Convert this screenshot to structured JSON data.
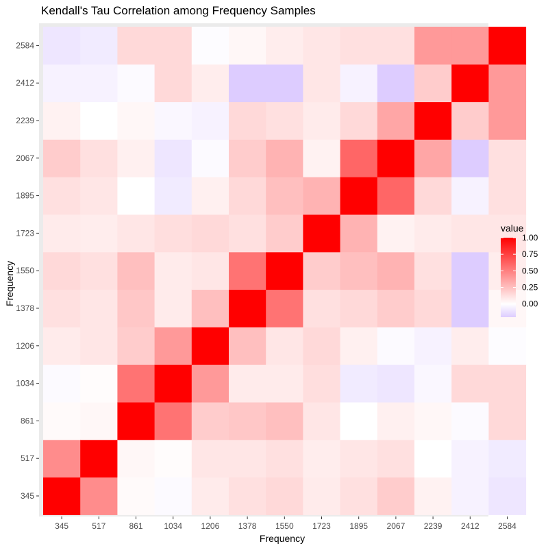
{
  "chart_data": {
    "type": "heatmap",
    "title": "Kendall's Tau Correlation among Frequency Samples",
    "xlabel": "Frequency",
    "ylabel": "Frequency",
    "categories": [
      "345",
      "517",
      "861",
      "1034",
      "1206",
      "1378",
      "1550",
      "1723",
      "1895",
      "2067",
      "2239",
      "2412",
      "2584"
    ],
    "legend": {
      "title": "value",
      "ticks": [
        "1.00",
        "0.75",
        "0.50",
        "0.25",
        "0.00"
      ],
      "tick_values": [
        1.0,
        0.75,
        0.5,
        0.25,
        0.0
      ],
      "range": [
        -0.2,
        1.0
      ],
      "position": "right"
    },
    "colors": {
      "low": "#ddccff",
      "mid": "#ffffff",
      "high": "#ff0000",
      "panel_bg": "#ebebeb",
      "grid": "#ffffff"
    },
    "matrix": [
      [
        1.0,
        0.45,
        0.02,
        -0.02,
        0.08,
        0.12,
        0.15,
        0.08,
        0.12,
        0.2,
        0.05,
        -0.05,
        -0.1
      ],
      [
        0.45,
        1.0,
        0.03,
        0.01,
        0.1,
        0.1,
        0.12,
        0.07,
        0.1,
        0.12,
        0.0,
        -0.05,
        -0.08
      ],
      [
        0.02,
        0.03,
        1.0,
        0.55,
        0.2,
        0.22,
        0.25,
        0.1,
        0.0,
        0.06,
        0.03,
        -0.02,
        0.15
      ],
      [
        -0.02,
        0.01,
        0.55,
        1.0,
        0.4,
        0.08,
        0.08,
        0.13,
        -0.08,
        -0.1,
        -0.03,
        0.15,
        0.15
      ],
      [
        0.08,
        0.1,
        0.2,
        0.4,
        1.0,
        0.25,
        0.1,
        0.15,
        0.06,
        -0.02,
        -0.05,
        0.07,
        -0.01
      ],
      [
        0.12,
        0.1,
        0.22,
        0.08,
        0.25,
        1.0,
        0.55,
        0.12,
        0.15,
        0.2,
        0.15,
        -0.22,
        0.03
      ],
      [
        0.15,
        0.12,
        0.25,
        0.08,
        0.1,
        0.55,
        1.0,
        0.2,
        0.25,
        0.3,
        0.12,
        -0.22,
        0.07
      ],
      [
        0.08,
        0.07,
        0.1,
        0.13,
        0.15,
        0.12,
        0.2,
        1.0,
        0.3,
        0.05,
        0.08,
        0.1,
        0.1
      ],
      [
        0.12,
        0.1,
        0.0,
        -0.08,
        0.06,
        0.15,
        0.25,
        0.3,
        1.0,
        0.6,
        0.15,
        -0.05,
        0.12
      ],
      [
        0.2,
        0.12,
        0.06,
        -0.1,
        -0.02,
        0.2,
        0.3,
        0.05,
        0.6,
        1.0,
        0.35,
        -0.22,
        0.12
      ],
      [
        0.05,
        0.0,
        0.03,
        -0.03,
        -0.05,
        0.15,
        0.12,
        0.08,
        0.15,
        0.35,
        1.0,
        0.2,
        0.4
      ],
      [
        -0.05,
        -0.05,
        -0.02,
        0.15,
        0.07,
        -0.22,
        -0.22,
        0.1,
        -0.05,
        -0.22,
        0.2,
        1.0,
        0.4
      ],
      [
        -0.1,
        -0.08,
        0.15,
        0.15,
        -0.01,
        0.03,
        0.07,
        0.1,
        0.12,
        0.12,
        0.4,
        0.4,
        1.0
      ]
    ]
  }
}
